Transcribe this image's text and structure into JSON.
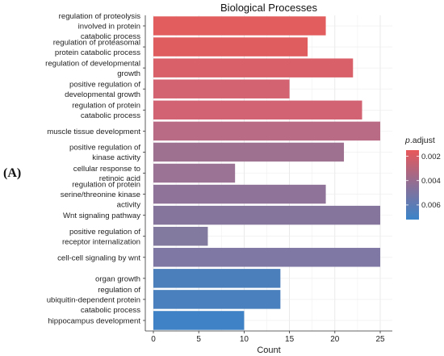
{
  "panel_label": "(A)",
  "chart_data": {
    "type": "bar",
    "orientation": "horizontal",
    "title": "Biological Processes",
    "xlabel": "Count",
    "ylabel": "",
    "xlim": [
      0,
      26.5
    ],
    "xticks": [
      0,
      5,
      10,
      15,
      20,
      25
    ],
    "grid": true,
    "categories": [
      "regulation of proteolysis involved in protein catabolic process",
      "regulation of proteasomal protein catabolic process",
      "regulation of developmental growth",
      "positive regulation of developmental growth",
      "regulation of protein catabolic process",
      "muscle tissue development",
      "positive regulation of kinase activity",
      "cellular response to retinoic acid",
      "regulation of protein serine/threonine kinase activity",
      "Wnt signaling pathway",
      "positive regulation of receptor internalization",
      "cell-cell signaling by wnt",
      "organ growth",
      "regulation of ubiquitin-dependent protein catabolic process",
      "hippocampus development"
    ],
    "category_lines": [
      [
        "regulation of proteolysis",
        "involved in protein",
        "catabolic process"
      ],
      [
        "regulation of proteasomal",
        "protein catabolic process"
      ],
      [
        "regulation of developmental",
        "growth"
      ],
      [
        "positive regulation of",
        "developmental growth"
      ],
      [
        "regulation of protein",
        "catabolic process"
      ],
      [
        "muscle tissue development"
      ],
      [
        "positive regulation of",
        "kinase activity"
      ],
      [
        "cellular response to",
        "retinoic acid"
      ],
      [
        "regulation of protein",
        "serine/threonine kinase",
        "activity"
      ],
      [
        "Wnt signaling pathway"
      ],
      [
        "positive regulation of",
        "receptor internalization"
      ],
      [
        "cell-cell signaling by wnt"
      ],
      [
        "organ growth"
      ],
      [
        "regulation of",
        "ubiquitin-dependent protein",
        "catabolic process"
      ],
      [
        "hippocampus development"
      ]
    ],
    "values": [
      19,
      17,
      22,
      15,
      23,
      25,
      21,
      9,
      19,
      25,
      6,
      25,
      14,
      14,
      10
    ],
    "colors": [
      "#e15d5e",
      "#e05d5f",
      "#d96068",
      "#d46371",
      "#d26373",
      "#b96b85",
      "#9e7191",
      "#9a7395",
      "#8f7399",
      "#85759c",
      "#837a9f",
      "#7f77a4",
      "#4b7fbb",
      "#4a80bd",
      "#3f82c5"
    ],
    "legend": {
      "title": "p.adjust",
      "position": "right",
      "ticks": [
        "0.002",
        "0.004",
        "0.006"
      ],
      "tick_positions": [
        0.002,
        0.004,
        0.006
      ],
      "range": [
        0.0015,
        0.0072
      ],
      "color_low": "#e8585a",
      "color_mid": "#8d6f96",
      "color_high": "#3a84c9"
    }
  }
}
